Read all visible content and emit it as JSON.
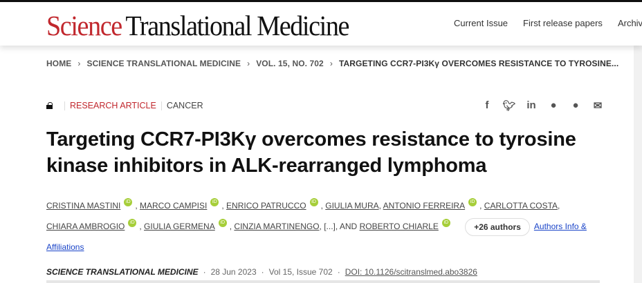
{
  "header": {
    "logo_science": "Science",
    "logo_rest": "Translational Medicine",
    "nav": [
      "Current Issue",
      "First release papers",
      "Archive"
    ]
  },
  "breadcrumb": [
    "HOME",
    "SCIENCE TRANSLATIONAL MEDICINE",
    "VOL. 15, NO. 702",
    "TARGETING CCR7-PI3Kγ OVERCOMES RESISTANCE TO TYROSINE..."
  ],
  "meta": {
    "type": "RESEARCH ARTICLE",
    "category": "CANCER",
    "accent": "#c1272d"
  },
  "share": [
    "facebook-icon",
    "twitter-icon",
    "linkedin-icon",
    "reddit-icon",
    "wechat-icon",
    "email-icon"
  ],
  "title": "Targeting CCR7-PI3Kγ overcomes resistance to tyrosine kinase inhibitors in ALK-rearranged lymphoma",
  "authors": {
    "names": [
      "CRISTINA MASTINI",
      "MARCO CAMPISI",
      "ENRICO PATRUCCO",
      "GIULIA MURA",
      "ANTONIO FERREIRA",
      "CARLOTTA COSTA",
      "CHIARA AMBROGIO",
      "GIULIA GERMENA",
      "CINZIA MARTINENGO",
      "ROBERTO CHIARLE"
    ],
    "ellipsis": "[...]",
    "and": "AND",
    "orcid": "iD",
    "more": "+26 authors",
    "info": "Authors Info & Affiliations"
  },
  "citation": {
    "journal": "SCIENCE TRANSLATIONAL MEDICINE",
    "date": "28 Jun 2023",
    "volume": "Vol 15, Issue 702",
    "doi": "DOI: 10.1126/scitranslmed.abo3826"
  }
}
